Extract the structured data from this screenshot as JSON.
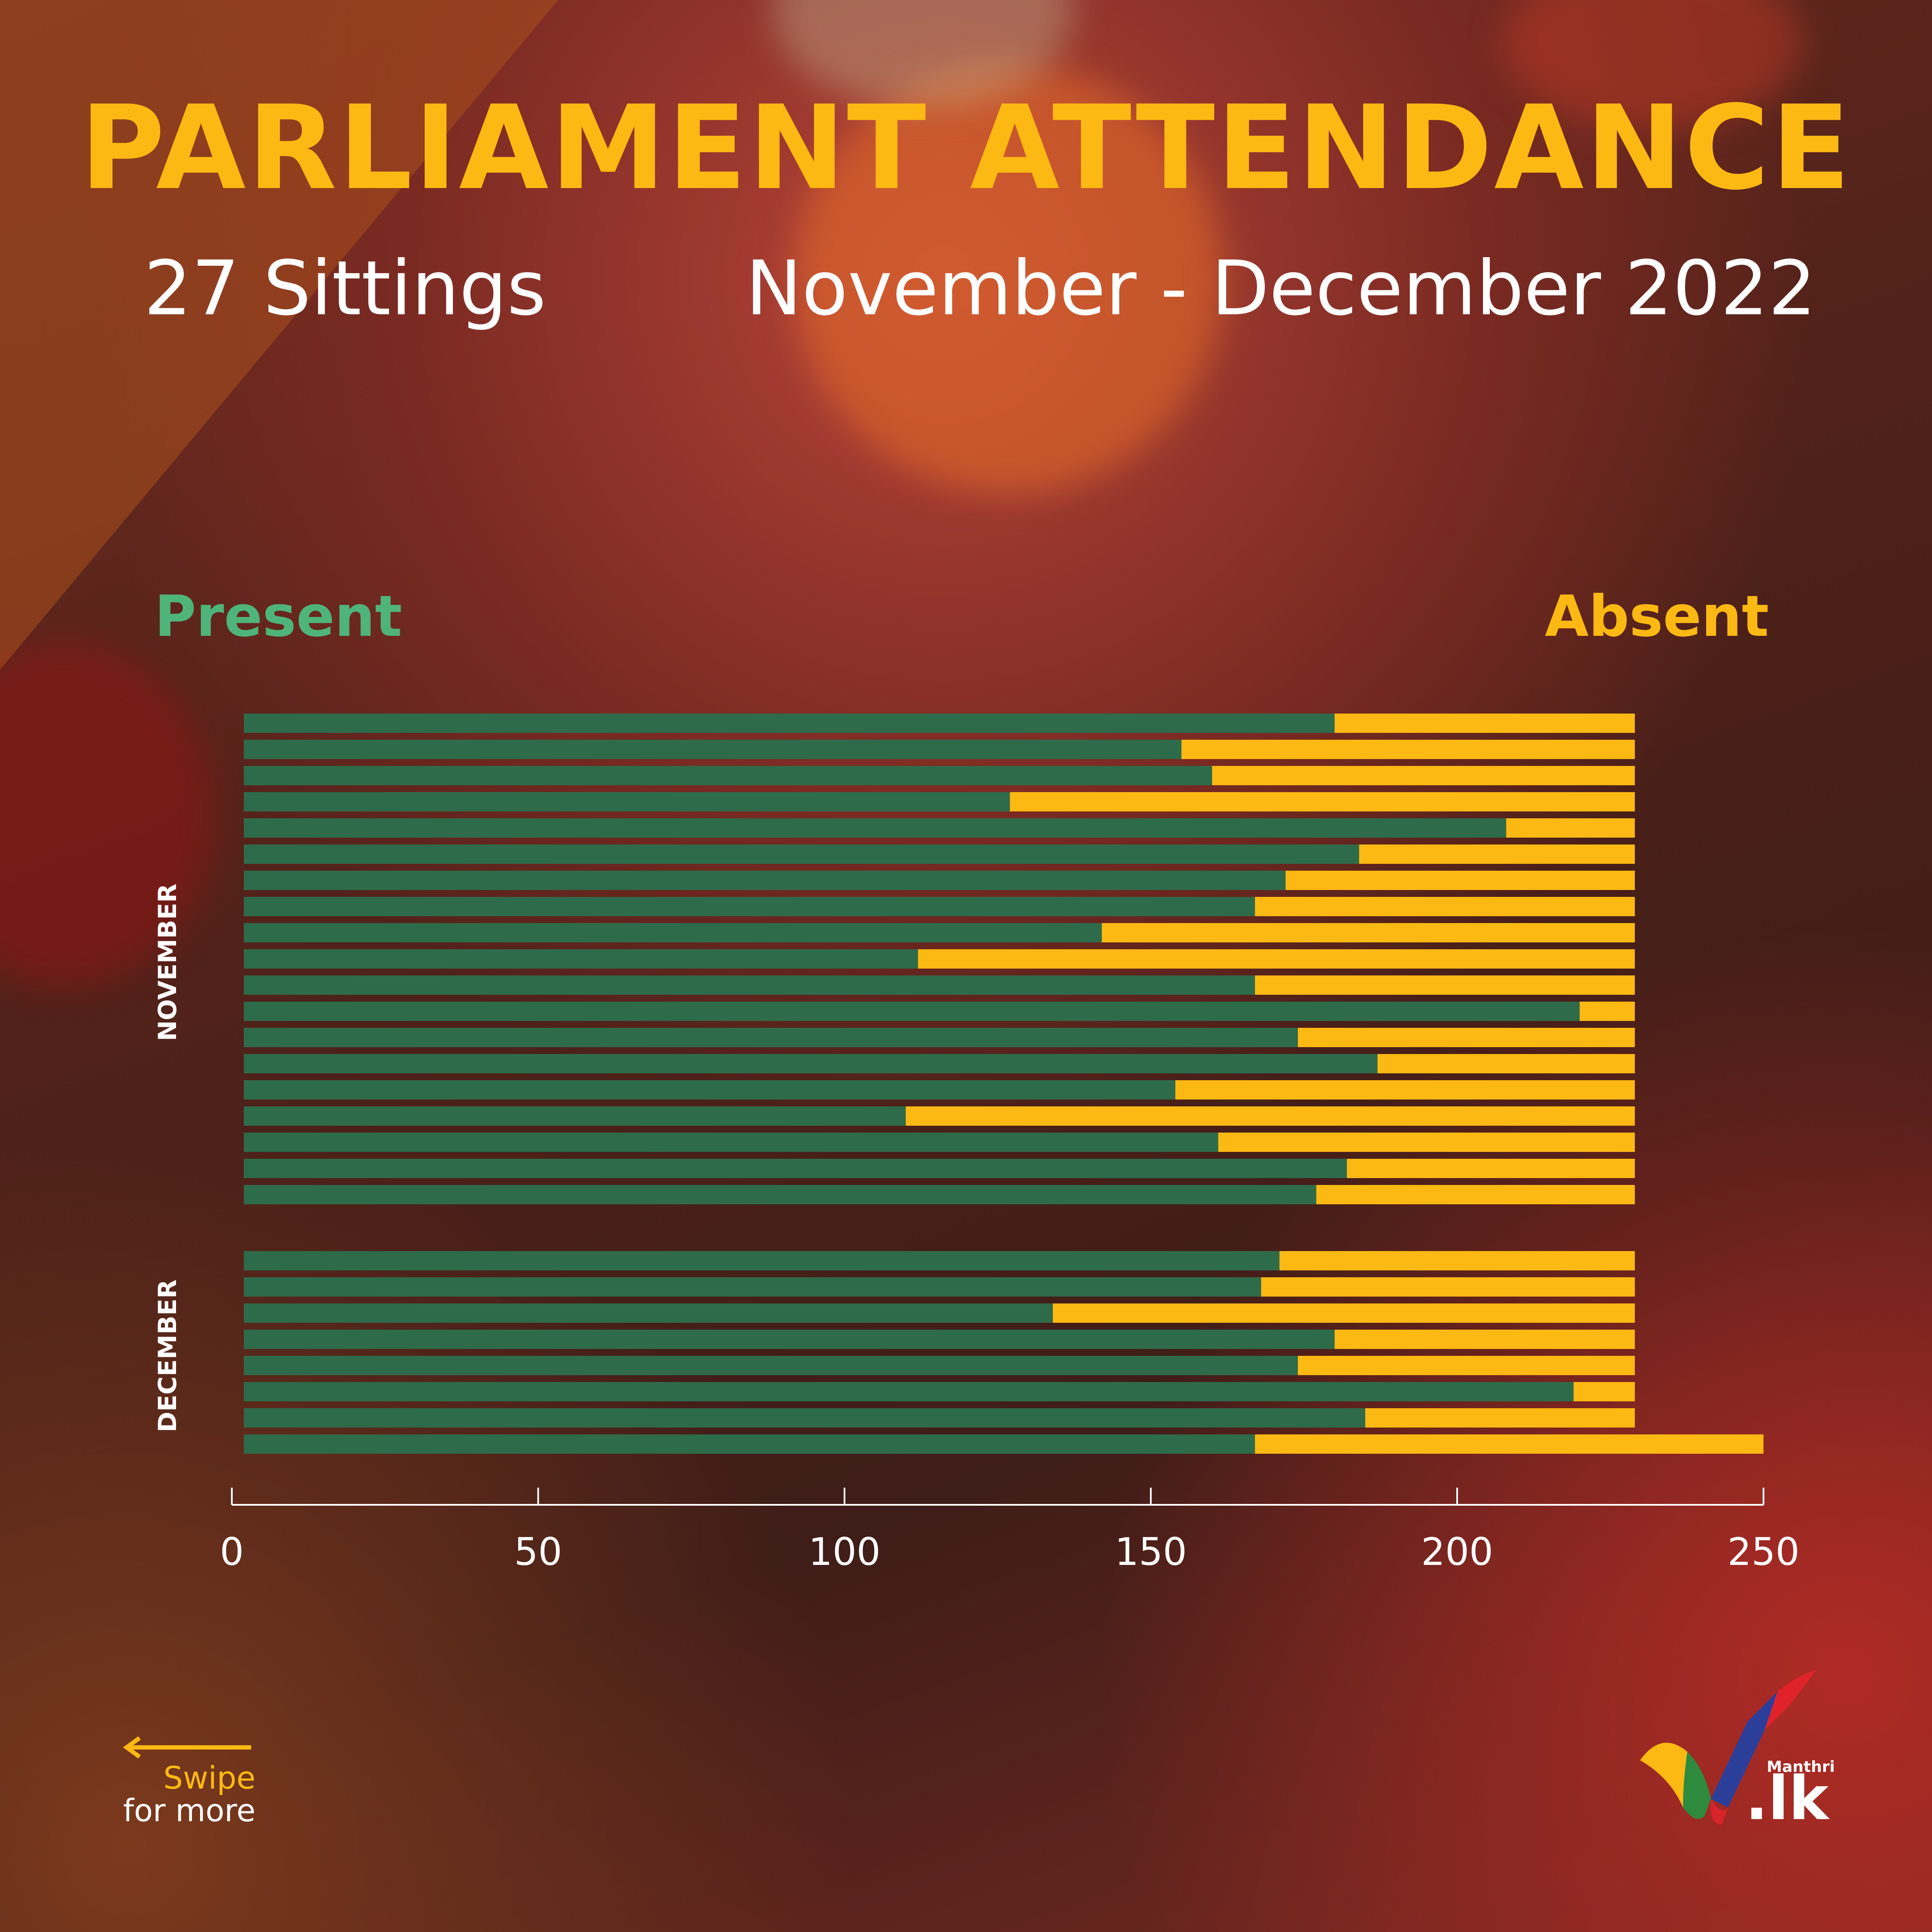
{
  "header": {
    "title": "PARLIAMENT ATTENDANCE",
    "sittings": "27 Sittings",
    "period": "November - December 2022"
  },
  "legend": {
    "present": "Present",
    "absent": "Absent"
  },
  "colors": {
    "present": "#2e6b4a",
    "absent": "#fdb913",
    "present_text": "#4fb47a",
    "title": "#fdb913"
  },
  "chart_data": {
    "type": "bar",
    "orientation": "horizontal",
    "stacked": true,
    "groups": [
      {
        "label": "NOVEMBER",
        "present": [
          180,
          155,
          160,
          127,
          208,
          184,
          172,
          167,
          142,
          112,
          167,
          220,
          174,
          187,
          154,
          110,
          161,
          182,
          177
        ],
        "absent": [
          49,
          74,
          69,
          102,
          21,
          45,
          57,
          62,
          87,
          117,
          62,
          9,
          55,
          42,
          75,
          119,
          68,
          47,
          52
        ]
      },
      {
        "label": "DECEMBER",
        "present": [
          171,
          168,
          134,
          180,
          174,
          219,
          185,
          167
        ],
        "absent": [
          58,
          61,
          95,
          49,
          55,
          10,
          44,
          83
        ]
      }
    ],
    "series": [
      {
        "name": "Present"
      },
      {
        "name": "Absent"
      }
    ],
    "xlim": [
      0,
      250
    ],
    "xticks": [
      "0",
      "50",
      "100",
      "150",
      "200",
      "250"
    ],
    "legend_position": "top"
  },
  "footer": {
    "swipe_line1": "Swipe",
    "swipe_line2": "for more",
    "logo_small": "Manthri",
    "logo_big": ".lk"
  }
}
